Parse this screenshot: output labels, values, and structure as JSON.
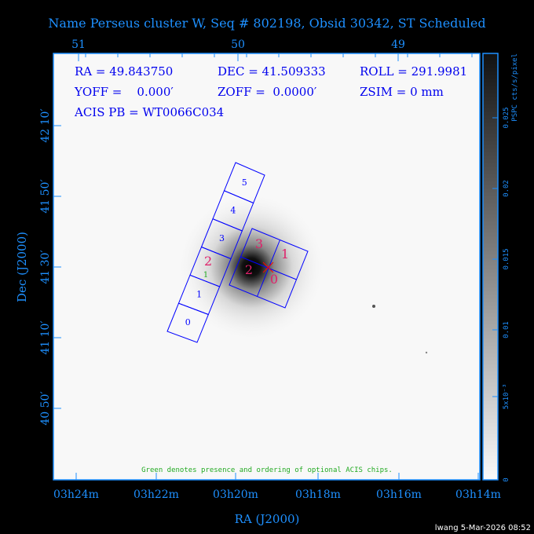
{
  "title": "Name Perseus cluster W, Seq # 802198, Obsid 30342, ST Scheduled",
  "info": {
    "ra": "RA = 49.843750",
    "dec": "DEC = 41.509333",
    "roll": "ROLL = 291.9981",
    "yoff": "YOFF =    0.000′",
    "zoff": "ZOFF =  0.0000′",
    "zsim": "ZSIM = 0 mm",
    "acis_pb": "ACIS PB = WT0066C034"
  },
  "note": "Green denotes presence and ordering of optional ACIS chips.",
  "footer": "lwang  5-Mar-2026 08:52",
  "chips": {
    "s_array": [
      "0",
      "1",
      "2",
      "3",
      "4",
      "5"
    ],
    "s_optional": "1",
    "i_array": [
      "0",
      "1",
      "2",
      "3"
    ]
  },
  "colors": {
    "axis": "#1e90ff",
    "info": "#0000ee",
    "chip_outline": "#0000ff",
    "selected_chip": "#e0206a",
    "optional_chip": "#22aa22",
    "aimpoint": "#ff0000"
  },
  "chart_data": {
    "type": "heatmap",
    "xlabel": "RA (J2000)",
    "ylabel": "Dec (J2000)",
    "x_ticks_bottom": [
      "03h24m",
      "03h22m",
      "03h20m",
      "03h18m",
      "03h16m",
      "03h14m"
    ],
    "x_ticks_top": [
      "51",
      "50",
      "49"
    ],
    "y_ticks": [
      "42 10′",
      "41 50′",
      "41 30′",
      "41 10′",
      "40 50′"
    ],
    "colorbar": {
      "label": "PSPC cts/s/pixel",
      "ticks": [
        "0",
        "5x10⁻³",
        "0.01",
        "0.015",
        "0.02",
        "0.025"
      ],
      "colormap": "white-to-black"
    }
  }
}
